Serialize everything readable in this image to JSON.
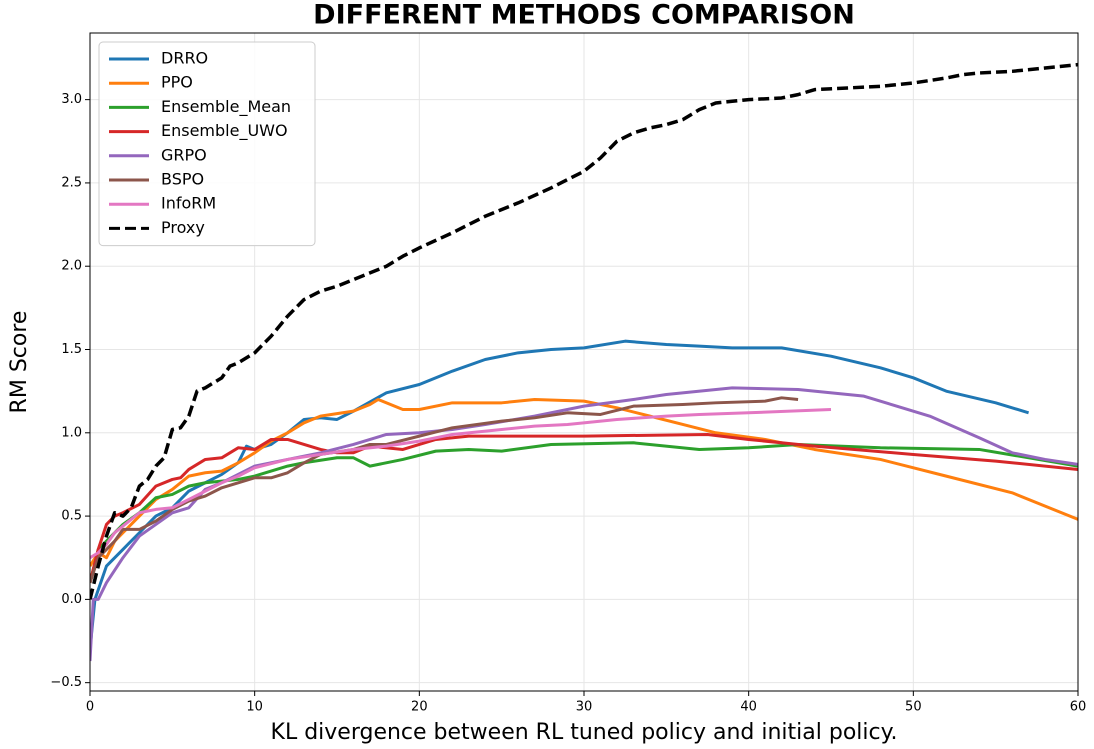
{
  "chart_data": {
    "type": "line",
    "title": "DIFFERENT METHODS COMPARISON",
    "xlabel": "KL divergence between RL tuned policy and initial policy.",
    "ylabel": "RM Score",
    "xlim": [
      0,
      60
    ],
    "ylim": [
      -0.55,
      3.4
    ],
    "xticks": [
      0,
      10,
      20,
      30,
      40,
      50,
      60
    ],
    "yticks": [
      {
        "value": -0.5,
        "label": "−0.5"
      },
      {
        "value": 0,
        "label": "0.0"
      },
      {
        "value": 0.5,
        "label": "0.5"
      },
      {
        "value": 1,
        "label": "1.0"
      },
      {
        "value": 1.5,
        "label": "1.5"
      },
      {
        "value": 2,
        "label": "2.0"
      },
      {
        "value": 2.5,
        "label": "2.5"
      },
      {
        "value": 3,
        "label": "3.0"
      }
    ],
    "grid": true,
    "legend": "upper left",
    "series": [
      {
        "name": "DRRO",
        "color": "#1f77b4",
        "dash": false,
        "x": [
          0,
          0.3,
          1,
          2,
          3,
          4,
          5,
          6,
          7,
          8,
          9,
          9.5,
          10,
          11,
          12,
          13,
          14,
          15,
          16,
          18,
          20,
          22,
          24,
          26,
          28,
          30,
          32.5,
          35,
          37,
          39,
          42,
          45,
          48,
          50,
          52,
          55,
          57
        ],
        "values": [
          -0.3,
          0,
          0.2,
          0.3,
          0.4,
          0.5,
          0.55,
          0.65,
          0.7,
          0.75,
          0.82,
          0.92,
          0.9,
          0.93,
          1.0,
          1.08,
          1.09,
          1.08,
          1.13,
          1.24,
          1.29,
          1.37,
          1.44,
          1.48,
          1.5,
          1.51,
          1.55,
          1.53,
          1.52,
          1.51,
          1.51,
          1.46,
          1.39,
          1.33,
          1.25,
          1.18,
          1.12
        ]
      },
      {
        "name": "PPO",
        "color": "#ff7f0e",
        "dash": false,
        "x": [
          0,
          0.5,
          1,
          1.5,
          2,
          3,
          4,
          5,
          6,
          7,
          8,
          9,
          10,
          11,
          12,
          13,
          14,
          16,
          17,
          17.5,
          19,
          20,
          22,
          25,
          27,
          30,
          32,
          34,
          36,
          38,
          41,
          44,
          48,
          52,
          56,
          60
        ],
        "values": [
          0.2,
          0.28,
          0.25,
          0.35,
          0.4,
          0.5,
          0.6,
          0.66,
          0.74,
          0.76,
          0.77,
          0.82,
          0.88,
          0.95,
          1.0,
          1.06,
          1.1,
          1.13,
          1.17,
          1.2,
          1.14,
          1.14,
          1.18,
          1.18,
          1.2,
          1.19,
          1.15,
          1.1,
          1.05,
          1.0,
          0.96,
          0.9,
          0.84,
          0.74,
          0.64,
          0.48
        ]
      },
      {
        "name": "Ensemble_Mean",
        "color": "#2ca02c",
        "dash": false,
        "x": [
          0,
          0.5,
          1,
          2,
          3,
          4,
          5,
          6,
          7,
          8,
          9,
          10,
          11,
          12,
          13,
          15,
          16,
          17,
          19,
          21,
          23,
          25,
          28,
          33,
          37,
          40,
          43,
          48,
          54,
          60
        ],
        "values": [
          0.1,
          0.3,
          0.35,
          0.45,
          0.52,
          0.61,
          0.63,
          0.68,
          0.7,
          0.71,
          0.72,
          0.74,
          0.77,
          0.8,
          0.82,
          0.85,
          0.85,
          0.8,
          0.84,
          0.89,
          0.9,
          0.89,
          0.93,
          0.94,
          0.9,
          0.91,
          0.93,
          0.91,
          0.9,
          0.8
        ]
      },
      {
        "name": "Ensemble_UWO",
        "color": "#d62728",
        "dash": false,
        "x": [
          0,
          0.5,
          1,
          1.5,
          2,
          3,
          4,
          5,
          5.5,
          6,
          7,
          8,
          9,
          10,
          11,
          12,
          13,
          14,
          15,
          16,
          17,
          19,
          21,
          23,
          26,
          30,
          37.5,
          40,
          44,
          50,
          55,
          60
        ],
        "values": [
          0.1,
          0.3,
          0.45,
          0.5,
          0.52,
          0.57,
          0.68,
          0.72,
          0.73,
          0.78,
          0.84,
          0.85,
          0.91,
          0.9,
          0.96,
          0.96,
          0.93,
          0.9,
          0.88,
          0.88,
          0.92,
          0.9,
          0.96,
          0.98,
          0.98,
          0.98,
          0.99,
          0.96,
          0.92,
          0.87,
          0.83,
          0.78
        ]
      },
      {
        "name": "GRPO",
        "color": "#9467bd",
        "dash": false,
        "x": [
          0,
          0.2,
          0.5,
          1,
          2,
          3,
          4,
          5,
          6,
          7,
          8,
          10,
          12,
          14,
          16,
          18,
          20,
          22,
          24,
          27,
          30,
          33,
          35,
          39,
          43,
          47,
          49,
          51,
          54,
          56,
          58,
          60
        ],
        "values": [
          -0.37,
          0,
          0,
          0.1,
          0.25,
          0.38,
          0.45,
          0.52,
          0.55,
          0.66,
          0.7,
          0.8,
          0.84,
          0.88,
          0.93,
          0.99,
          1.0,
          1.02,
          1.05,
          1.1,
          1.16,
          1.2,
          1.23,
          1.27,
          1.26,
          1.22,
          1.16,
          1.1,
          0.97,
          0.88,
          0.84,
          0.81
        ]
      },
      {
        "name": "BSPO",
        "color": "#8c564b",
        "dash": false,
        "x": [
          0,
          0.5,
          1,
          1.5,
          2,
          3,
          4,
          5,
          6,
          7,
          8,
          9,
          10,
          11,
          12,
          13,
          14,
          16,
          17,
          18,
          20,
          22,
          25,
          27,
          29,
          31,
          33,
          36,
          38,
          41,
          42,
          43
        ],
        "values": [
          0.1,
          0.25,
          0.3,
          0.35,
          0.42,
          0.42,
          0.47,
          0.54,
          0.59,
          0.62,
          0.67,
          0.7,
          0.73,
          0.73,
          0.76,
          0.82,
          0.87,
          0.9,
          0.93,
          0.93,
          0.98,
          1.03,
          1.07,
          1.09,
          1.12,
          1.11,
          1.16,
          1.17,
          1.18,
          1.19,
          1.21,
          1.2
        ]
      },
      {
        "name": "InfoRM",
        "color": "#e377c2",
        "dash": false,
        "x": [
          0,
          0.5,
          1,
          1.5,
          2,
          3,
          4,
          5,
          6,
          7,
          8,
          9,
          10,
          12,
          14,
          16,
          18,
          20,
          22,
          25,
          27,
          29,
          32,
          35,
          37,
          40,
          45
        ],
        "values": [
          0.25,
          0.28,
          0.33,
          0.4,
          0.44,
          0.52,
          0.54,
          0.55,
          0.6,
          0.65,
          0.7,
          0.74,
          0.79,
          0.84,
          0.87,
          0.9,
          0.92,
          0.95,
          0.99,
          1.02,
          1.04,
          1.05,
          1.08,
          1.1,
          1.11,
          1.12,
          1.14
        ]
      },
      {
        "name": "Proxy",
        "color": "#000000",
        "dash": true,
        "x": [
          0,
          0.5,
          1,
          1.5,
          2,
          2.5,
          3,
          3.5,
          4,
          4.5,
          5,
          5.5,
          6,
          6.5,
          7,
          7.5,
          8,
          8.5,
          9,
          10,
          11,
          12,
          13,
          14,
          15,
          16,
          17,
          18,
          19,
          20,
          22,
          24,
          26,
          28,
          30,
          31,
          32,
          33,
          34,
          35,
          36,
          37,
          38,
          39,
          40,
          42,
          43,
          44,
          46,
          48,
          50,
          52,
          53,
          54,
          56,
          58,
          60
        ],
        "values": [
          0,
          0.2,
          0.38,
          0.52,
          0.5,
          0.55,
          0.68,
          0.72,
          0.8,
          0.85,
          1.02,
          1.03,
          1.1,
          1.25,
          1.27,
          1.3,
          1.33,
          1.4,
          1.42,
          1.48,
          1.58,
          1.7,
          1.8,
          1.85,
          1.88,
          1.92,
          1.96,
          2.0,
          2.06,
          2.11,
          2.2,
          2.3,
          2.38,
          2.47,
          2.57,
          2.65,
          2.75,
          2.8,
          2.83,
          2.85,
          2.88,
          2.94,
          2.98,
          2.99,
          3.0,
          3.01,
          3.03,
          3.06,
          3.07,
          3.08,
          3.1,
          3.13,
          3.15,
          3.16,
          3.17,
          3.19,
          3.21
        ]
      }
    ]
  }
}
